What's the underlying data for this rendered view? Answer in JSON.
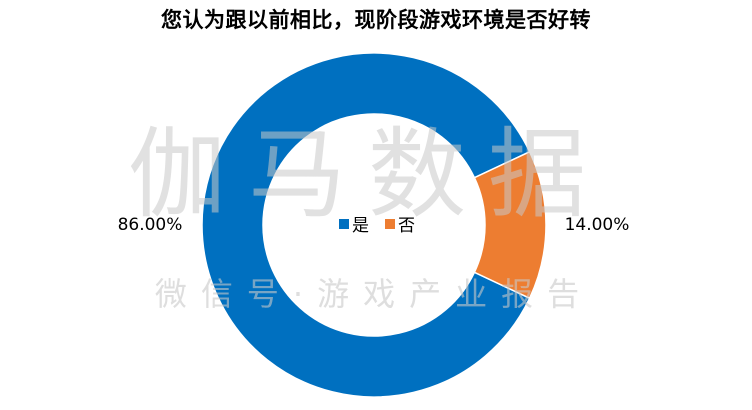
{
  "chart_data": {
    "type": "pie",
    "style": "donut",
    "title": "您认为跟以前相比，现阶段游戏环境是否好转",
    "categories": [
      "是",
      "否"
    ],
    "values": [
      86.0,
      14.0
    ],
    "data_labels": [
      "86.00%",
      "14.00%"
    ],
    "colors": [
      "#0070c0",
      "#ed7d31"
    ],
    "legend_position": "center"
  },
  "watermark": {
    "line1": "伽马数据",
    "line2": "微信号·游戏产业报告"
  }
}
